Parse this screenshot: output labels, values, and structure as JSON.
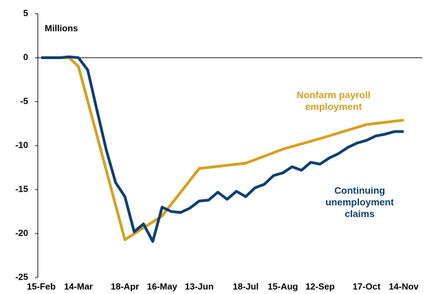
{
  "chart_data": {
    "type": "line",
    "y_label": "Millions",
    "x": [
      "15-Feb",
      "22-Feb",
      "29-Feb",
      "7-Mar",
      "14-Mar",
      "21-Mar",
      "28-Mar",
      "4-Apr",
      "11-Apr",
      "18-Apr",
      "25-Apr",
      "2-May",
      "9-May",
      "16-May",
      "23-May",
      "30-May",
      "6-Jun",
      "13-Jun",
      "20-Jun",
      "27-Jun",
      "4-Jul",
      "11-Jul",
      "18-Jul",
      "25-Jul",
      "1-Aug",
      "8-Aug",
      "15-Aug",
      "22-Aug",
      "29-Aug",
      "5-Sep",
      "12-Sep",
      "19-Sep",
      "26-Sep",
      "3-Oct",
      "10-Oct",
      "17-Oct",
      "24-Oct",
      "31-Oct",
      "7-Nov",
      "14-Nov"
    ],
    "xticks": [
      "15-Feb",
      "14-Mar",
      "18-Apr",
      "16-May",
      "13-Jun",
      "18-Jul",
      "15-Aug",
      "12-Sep",
      "17-Oct",
      "14-Nov"
    ],
    "series": [
      {
        "name": "Nonfarm payroll employment",
        "color": "#d4a020",
        "x": [
          "15-Feb",
          "7-Mar",
          "14-Mar",
          "18-Apr",
          "16-May",
          "13-Jun",
          "18-Jul",
          "15-Aug",
          "12-Sep",
          "17-Oct",
          "14-Nov"
        ],
        "values": [
          0,
          0,
          -1.0,
          -20.7,
          -18.0,
          -12.6,
          -12.0,
          -10.4,
          -9.2,
          -7.6,
          -7.1
        ]
      },
      {
        "name": "Continuing unemployment claims",
        "color": "#0d3f6e",
        "values": [
          0,
          0,
          0,
          0.1,
          0,
          -1.4,
          -6.0,
          -10.5,
          -14.2,
          -15.8,
          -19.8,
          -18.9,
          -20.9,
          -17.0,
          -17.5,
          -17.6,
          -17.1,
          -16.3,
          -16.2,
          -15.3,
          -16.1,
          -15.2,
          -15.8,
          -14.8,
          -14.4,
          -13.4,
          -13.1,
          -12.4,
          -12.8,
          -11.9,
          -12.1,
          -11.4,
          -10.9,
          -10.2,
          -9.7,
          -9.4,
          -8.9,
          -8.7,
          -8.4,
          -8.4
        ]
      }
    ],
    "ylim": [
      -25,
      5
    ],
    "yticks": [
      5,
      0,
      -5,
      -10,
      -15,
      -20,
      -25
    ]
  }
}
